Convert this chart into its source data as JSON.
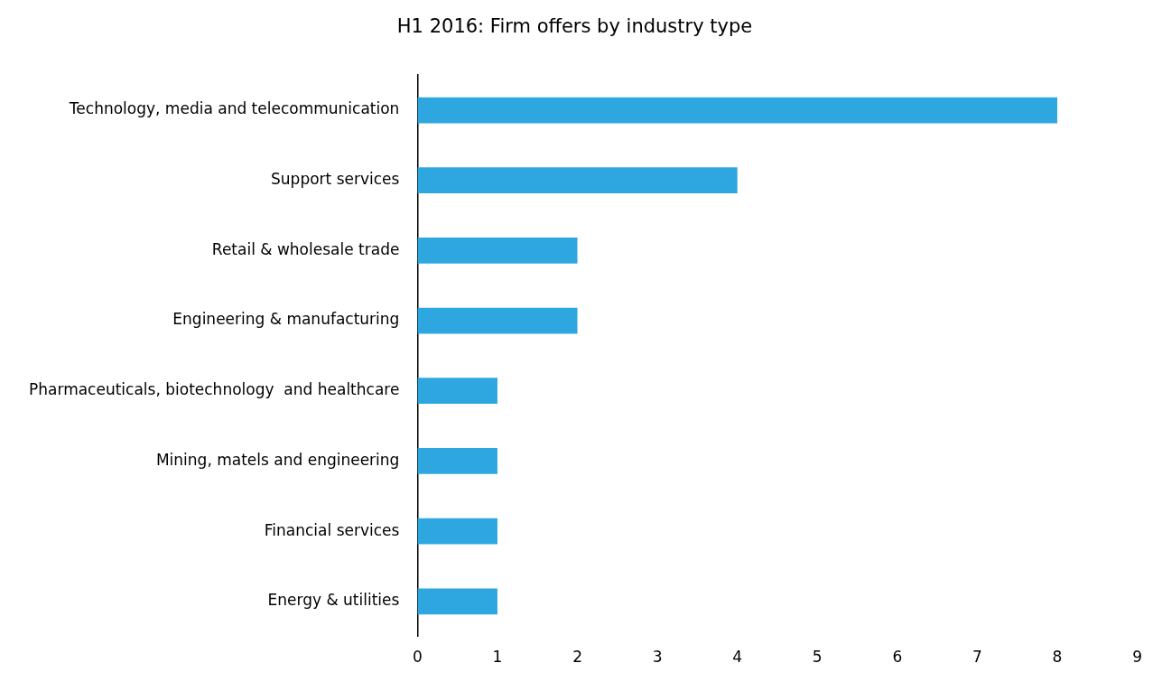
{
  "chart_data": {
    "type": "bar",
    "orientation": "horizontal",
    "title": "H1 2016: Firm offers by industry type",
    "categories": [
      "Technology, media and telecommunication",
      "Support services",
      "Retail & wholesale trade",
      "Engineering & manufacturing",
      "Pharmaceuticals, biotechnology  and healthcare",
      "Mining, matels and engineering",
      "Financial services",
      "Energy & utilities"
    ],
    "values": [
      8,
      4,
      2,
      2,
      1,
      1,
      1,
      1
    ],
    "color": "#2ea7e0",
    "xlim": [
      0,
      9
    ],
    "xticks": [
      0,
      1,
      2,
      3,
      4,
      5,
      6,
      7,
      8,
      9
    ],
    "grid": false,
    "legend": false
  }
}
